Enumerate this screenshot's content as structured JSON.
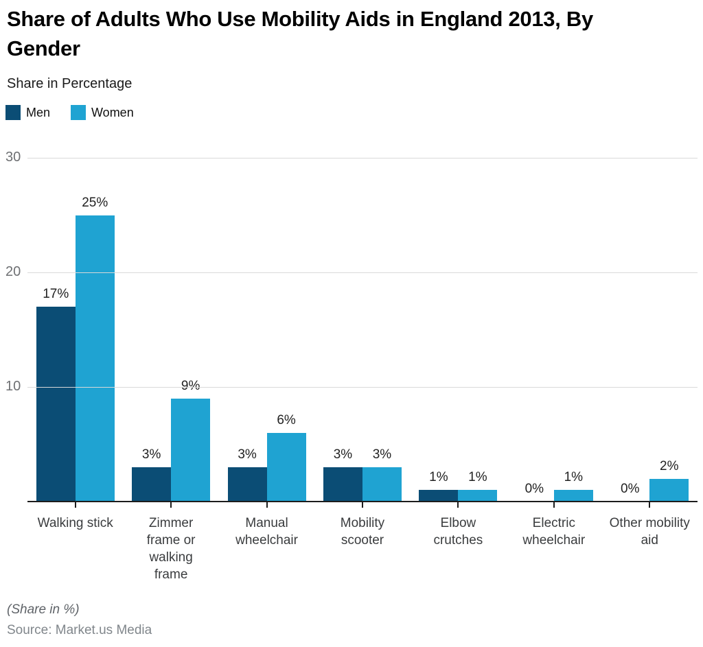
{
  "header": {
    "title": "Share of Adults Who Use Mobility Aids in England 2013, By\nGender",
    "subtitle": "Share in Percentage"
  },
  "legend": [
    {
      "label": "Men",
      "color": "#0b4d75"
    },
    {
      "label": "Women",
      "color": "#1fa3d2"
    }
  ],
  "chart_data": {
    "type": "bar",
    "title": "Share of Adults Who Use Mobility Aids in England 2013, By Gender",
    "subtitle": "Share in Percentage",
    "xlabel": "",
    "ylabel": "Share in Percentage",
    "categories": [
      "Walking stick",
      "Zimmer frame or walking frame",
      "Manual wheelchair",
      "Mobility scooter",
      "Elbow crutches",
      "Electric wheelchair",
      "Other mobility aid"
    ],
    "category_lines": [
      [
        "Walking stick"
      ],
      [
        "Zimmer",
        "frame or",
        "walking",
        "frame"
      ],
      [
        "Manual",
        "wheelchair"
      ],
      [
        "Mobility",
        "scooter"
      ],
      [
        "Elbow",
        "crutches"
      ],
      [
        "Electric",
        "wheelchair"
      ],
      [
        "Other mobility",
        "aid"
      ]
    ],
    "series": [
      {
        "name": "Men",
        "color": "#0b4d75",
        "values": [
          17,
          3,
          3,
          3,
          1,
          0,
          0
        ]
      },
      {
        "name": "Women",
        "color": "#1fa3d2",
        "values": [
          25,
          9,
          6,
          3,
          1,
          1,
          2
        ]
      }
    ],
    "value_suffix": "%",
    "yticks": [
      10,
      20,
      30
    ],
    "ylim": [
      0,
      32
    ],
    "grid": true,
    "legend_position": "top-left"
  },
  "footer": {
    "note": "(Share in %)",
    "source": "Source: Market.us Media"
  },
  "colors": {
    "background": "#ffffff",
    "gridline": "#d9d9d9",
    "axis_line": "#1c1c1c",
    "ytick_text": "#6e7073",
    "category_text": "#3a3c3e",
    "value_text": "#212121"
  }
}
